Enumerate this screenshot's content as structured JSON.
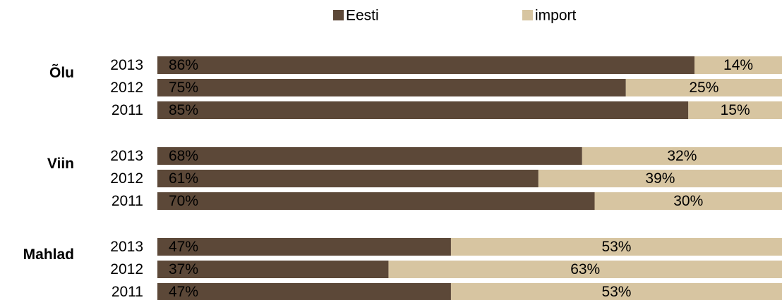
{
  "chart_data": {
    "type": "stacked-bar-horizontal",
    "groups": [
      {
        "name": "Õlu",
        "categories": [
          "2013",
          "2012",
          "2011"
        ]
      },
      {
        "name": "Viin",
        "categories": [
          "2013",
          "2012",
          "2011"
        ]
      },
      {
        "name": "Mahlad",
        "categories": [
          "2013",
          "2012",
          "2011"
        ]
      }
    ],
    "series": [
      {
        "name": "Eesti",
        "color": "#5c4838",
        "values": [
          [
            86,
            75,
            85
          ],
          [
            68,
            61,
            70
          ],
          [
            47,
            37,
            47
          ]
        ],
        "value_labels": [
          [
            "86%",
            "75%",
            "85%"
          ],
          [
            "68%",
            "61%",
            "70%"
          ],
          [
            "47%",
            "37%",
            "47%"
          ]
        ]
      },
      {
        "name": "import",
        "color": "#d7c5a1",
        "values": [
          [
            14,
            25,
            15
          ],
          [
            32,
            39,
            30
          ],
          [
            53,
            63,
            53
          ]
        ],
        "value_labels": [
          [
            "14%",
            "25%",
            "15%"
          ],
          [
            "32%",
            "39%",
            "30%"
          ],
          [
            "53%",
            "63%",
            "53%"
          ]
        ]
      }
    ],
    "xlim": [
      0,
      100
    ],
    "legend": "top"
  }
}
